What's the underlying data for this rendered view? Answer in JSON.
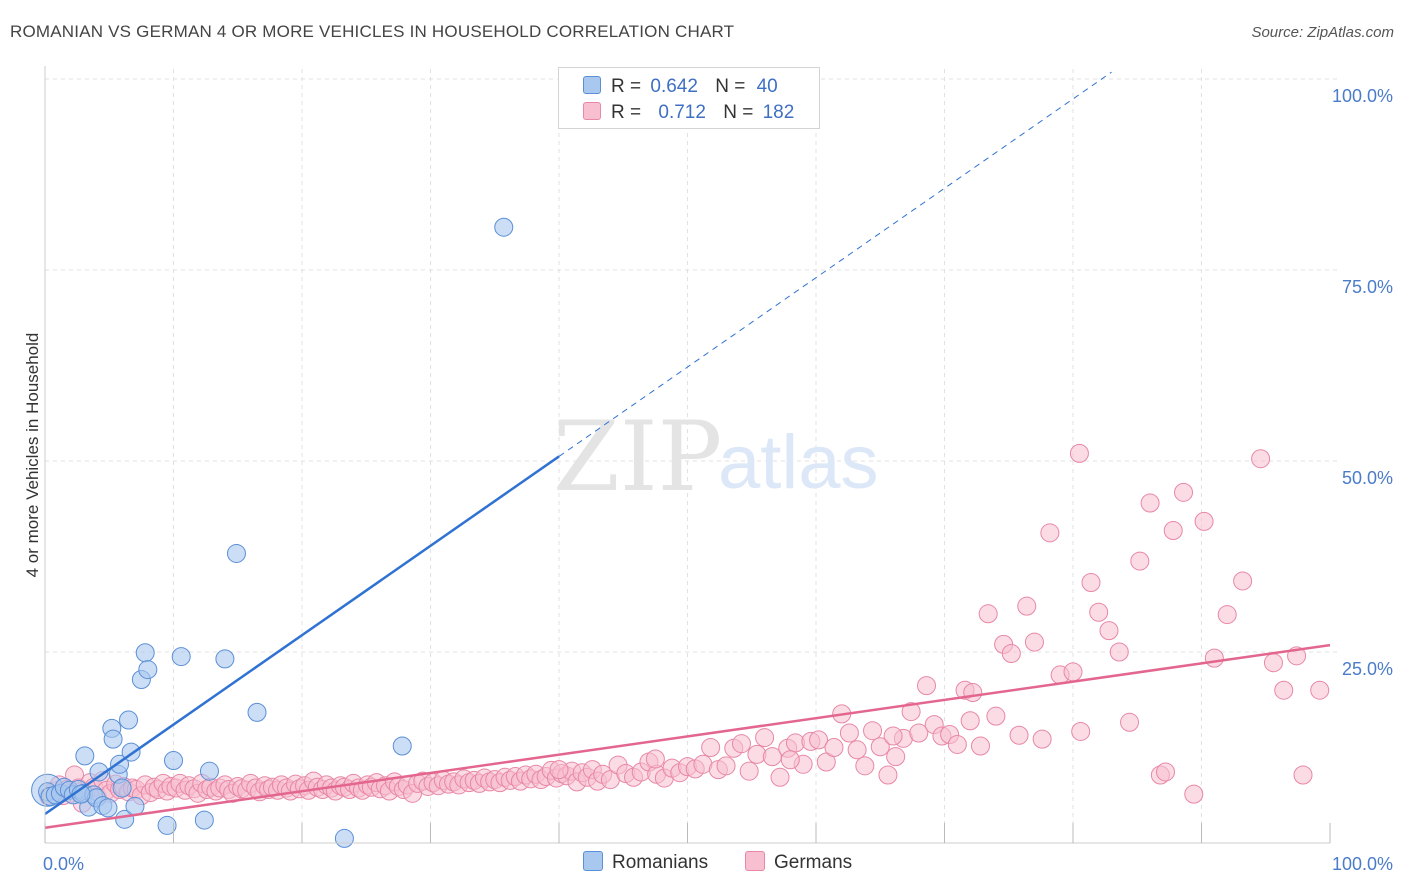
{
  "title": "ROMANIAN VS GERMAN 4 OR MORE VEHICLES IN HOUSEHOLD CORRELATION CHART",
  "source": "Source: ZipAtlas.com",
  "watermark": {
    "zip": "ZIP",
    "atlas": "atlas"
  },
  "legend": {
    "romanians": {
      "r_label": "R =",
      "r_value": "0.642",
      "n_label": "N =",
      "n_value": "40"
    },
    "germans": {
      "r_label": "R =",
      "r_value": "0.712",
      "n_label": "N =",
      "n_value": "182"
    }
  },
  "bottom_legend": {
    "romanians": "Romanians",
    "germans": "Germans"
  },
  "colors": {
    "romanians_fill": "#a9c8f0",
    "romanians_stroke": "#5b8fd6",
    "romanians_line": "#2f72d2",
    "germans_fill": "#f7bfd0",
    "germans_stroke": "#e887a8",
    "germans_line": "#e3668f",
    "tick_text": "#4a7cc9",
    "grid": "#e1e1e1"
  },
  "chart_data": {
    "type": "scatter",
    "title": "ROMANIAN VS GERMAN 4 OR MORE VEHICLES IN HOUSEHOLD CORRELATION CHART",
    "xlabel": "",
    "ylabel": "4 or more Vehicles in Household",
    "xlim": [
      0,
      100
    ],
    "ylim": [
      0,
      100
    ],
    "x_tick_labels": [
      "0.0%",
      "100.0%"
    ],
    "y_ticks": [
      25,
      50,
      75,
      100
    ],
    "y_tick_labels": [
      "25.0%",
      "50.0%",
      "75.0%",
      "100.0%"
    ],
    "grid": true,
    "legend_position": "top-center",
    "series": [
      {
        "name": "Romanians",
        "r": 0.642,
        "n": 40,
        "trend": {
          "x": [
            0,
            40
          ],
          "y": [
            3.8,
            50.6
          ],
          "dashed_to": [
            83,
            100.9
          ]
        },
        "points": [
          [
            0.2,
            6.7
          ],
          [
            0.4,
            6.1
          ],
          [
            0.8,
            6.3
          ],
          [
            1.2,
            6.5
          ],
          [
            1.5,
            7.3
          ],
          [
            1.9,
            6.9
          ],
          [
            2.2,
            6.3
          ],
          [
            2.6,
            7.0
          ],
          [
            3.0,
            6.5
          ],
          [
            3.4,
            4.7
          ],
          [
            3.1,
            11.4
          ],
          [
            3.8,
            6.3
          ],
          [
            4.0,
            5.9
          ],
          [
            4.2,
            9.3
          ],
          [
            4.5,
            4.9
          ],
          [
            4.9,
            4.6
          ],
          [
            5.2,
            15.0
          ],
          [
            5.3,
            13.6
          ],
          [
            5.7,
            9.0
          ],
          [
            5.8,
            10.3
          ],
          [
            6.0,
            7.2
          ],
          [
            6.2,
            3.1
          ],
          [
            6.5,
            16.1
          ],
          [
            6.7,
            11.9
          ],
          [
            7.0,
            4.8
          ],
          [
            7.5,
            21.4
          ],
          [
            7.8,
            24.9
          ],
          [
            8.0,
            22.7
          ],
          [
            9.5,
            2.3
          ],
          [
            10.0,
            10.8
          ],
          [
            10.6,
            24.4
          ],
          [
            12.4,
            3.0
          ],
          [
            12.8,
            9.4
          ],
          [
            14.0,
            24.1
          ],
          [
            14.9,
            37.9
          ],
          [
            16.5,
            17.1
          ],
          [
            23.3,
            0.6
          ],
          [
            27.8,
            12.7
          ],
          [
            35.7,
            80.6
          ],
          [
            2.8,
            6.4
          ]
        ]
      },
      {
        "name": "Germans",
        "r": 0.712,
        "n": 182,
        "trend": {
          "x": [
            0,
            100
          ],
          "y": [
            2.0,
            25.9
          ]
        },
        "points": [
          [
            0.3,
            6.1
          ],
          [
            0.7,
            6.8
          ],
          [
            1.1,
            7.6
          ],
          [
            1.4,
            6.2
          ],
          [
            1.7,
            7.0
          ],
          [
            2.0,
            6.5
          ],
          [
            2.3,
            8.9
          ],
          [
            2.6,
            7.2
          ],
          [
            2.9,
            5.2
          ],
          [
            3.2,
            6.6
          ],
          [
            3.5,
            7.9
          ],
          [
            3.8,
            7.3
          ],
          [
            4.1,
            6.0
          ],
          [
            4.5,
            8.2
          ],
          [
            4.8,
            6.9
          ],
          [
            5.1,
            6.5
          ],
          [
            5.5,
            7.7
          ],
          [
            5.8,
            7.0
          ],
          [
            6.1,
            7.4
          ],
          [
            6.5,
            6.7
          ],
          [
            6.8,
            7.2
          ],
          [
            7.1,
            7.0
          ],
          [
            7.5,
            6.2
          ],
          [
            7.8,
            7.6
          ],
          [
            8.2,
            6.6
          ],
          [
            8.5,
            7.3
          ],
          [
            8.8,
            7.0
          ],
          [
            9.2,
            7.8
          ],
          [
            9.5,
            6.8
          ],
          [
            9.8,
            7.4
          ],
          [
            10.2,
            7.2
          ],
          [
            10.5,
            7.8
          ],
          [
            10.9,
            6.9
          ],
          [
            11.2,
            7.5
          ],
          [
            11.6,
            7.1
          ],
          [
            11.9,
            6.5
          ],
          [
            12.2,
            7.8
          ],
          [
            12.6,
            7.0
          ],
          [
            12.9,
            7.3
          ],
          [
            13.3,
            6.8
          ],
          [
            13.6,
            7.2
          ],
          [
            14.0,
            7.6
          ],
          [
            14.3,
            7.0
          ],
          [
            14.6,
            6.5
          ],
          [
            15.0,
            7.4
          ],
          [
            15.3,
            7.1
          ],
          [
            15.7,
            6.9
          ],
          [
            16.0,
            7.8
          ],
          [
            16.4,
            7.2
          ],
          [
            16.7,
            6.7
          ],
          [
            17.1,
            7.5
          ],
          [
            17.4,
            7.0
          ],
          [
            17.7,
            7.3
          ],
          [
            18.1,
            6.9
          ],
          [
            18.4,
            7.6
          ],
          [
            18.8,
            7.2
          ],
          [
            19.1,
            6.8
          ],
          [
            19.5,
            7.7
          ],
          [
            19.8,
            7.1
          ],
          [
            20.2,
            7.5
          ],
          [
            20.5,
            6.9
          ],
          [
            20.9,
            8.1
          ],
          [
            21.2,
            7.3
          ],
          [
            21.6,
            7.0
          ],
          [
            21.9,
            7.6
          ],
          [
            22.3,
            7.2
          ],
          [
            22.6,
            6.8
          ],
          [
            23.0,
            7.5
          ],
          [
            23.3,
            7.3
          ],
          [
            23.7,
            7.0
          ],
          [
            24.0,
            7.8
          ],
          [
            24.4,
            7.2
          ],
          [
            24.7,
            6.9
          ],
          [
            25.1,
            7.6
          ],
          [
            25.4,
            7.3
          ],
          [
            25.8,
            7.9
          ],
          [
            26.1,
            7.1
          ],
          [
            26.5,
            7.5
          ],
          [
            26.8,
            6.8
          ],
          [
            27.2,
            8.0
          ],
          [
            27.5,
            7.4
          ],
          [
            27.9,
            7.0
          ],
          [
            28.2,
            7.6
          ],
          [
            28.6,
            6.5
          ],
          [
            29.0,
            7.8
          ],
          [
            29.4,
            8.1
          ],
          [
            29.8,
            7.4
          ],
          [
            30.2,
            7.9
          ],
          [
            30.6,
            7.5
          ],
          [
            31.0,
            8.2
          ],
          [
            31.4,
            7.7
          ],
          [
            31.8,
            8.0
          ],
          [
            32.2,
            7.6
          ],
          [
            32.6,
            8.4
          ],
          [
            33.0,
            7.9
          ],
          [
            33.4,
            8.2
          ],
          [
            33.8,
            7.8
          ],
          [
            34.2,
            8.5
          ],
          [
            34.6,
            8.0
          ],
          [
            35.0,
            8.3
          ],
          [
            35.4,
            7.9
          ],
          [
            35.8,
            8.6
          ],
          [
            36.2,
            8.2
          ],
          [
            36.6,
            8.7
          ],
          [
            37.0,
            8.1
          ],
          [
            37.4,
            8.9
          ],
          [
            37.8,
            8.4
          ],
          [
            38.2,
            9.0
          ],
          [
            38.6,
            8.3
          ],
          [
            39.0,
            8.7
          ],
          [
            39.4,
            9.5
          ],
          [
            39.8,
            8.5
          ],
          [
            40.2,
            9.1
          ],
          [
            40.6,
            8.8
          ],
          [
            41.0,
            9.4
          ],
          [
            41.4,
            8.0
          ],
          [
            41.8,
            9.2
          ],
          [
            42.2,
            8.6
          ],
          [
            42.6,
            9.6
          ],
          [
            43.0,
            8.1
          ],
          [
            43.4,
            9.0
          ],
          [
            44.0,
            8.3
          ],
          [
            44.6,
            10.2
          ],
          [
            45.2,
            9.1
          ],
          [
            45.8,
            8.6
          ],
          [
            46.4,
            9.3
          ],
          [
            47.0,
            10.6
          ],
          [
            47.6,
            9.0
          ],
          [
            48.2,
            8.5
          ],
          [
            48.8,
            9.8
          ],
          [
            49.4,
            9.2
          ],
          [
            50.0,
            10.0
          ],
          [
            50.6,
            9.7
          ],
          [
            51.2,
            10.3
          ],
          [
            51.8,
            12.5
          ],
          [
            52.4,
            9.6
          ],
          [
            53.0,
            10.1
          ],
          [
            53.6,
            12.4
          ],
          [
            54.2,
            13.0
          ],
          [
            54.8,
            9.4
          ],
          [
            55.4,
            11.6
          ],
          [
            56.0,
            13.8
          ],
          [
            56.6,
            11.3
          ],
          [
            57.2,
            8.6
          ],
          [
            57.8,
            12.4
          ],
          [
            58.4,
            13.1
          ],
          [
            59.0,
            10.3
          ],
          [
            59.6,
            13.3
          ],
          [
            60.2,
            13.5
          ],
          [
            60.8,
            10.6
          ],
          [
            61.4,
            12.5
          ],
          [
            62.0,
            16.9
          ],
          [
            62.6,
            14.4
          ],
          [
            63.2,
            12.2
          ],
          [
            63.8,
            10.1
          ],
          [
            64.4,
            14.7
          ],
          [
            65.0,
            12.6
          ],
          [
            65.6,
            8.9
          ],
          [
            66.2,
            11.3
          ],
          [
            66.8,
            13.7
          ],
          [
            67.4,
            17.2
          ],
          [
            68.0,
            14.4
          ],
          [
            68.6,
            20.6
          ],
          [
            69.2,
            15.5
          ],
          [
            69.8,
            14.0
          ],
          [
            70.4,
            14.2
          ],
          [
            71.0,
            12.9
          ],
          [
            71.6,
            20.0
          ],
          [
            72.2,
            19.7
          ],
          [
            72.8,
            12.7
          ],
          [
            73.4,
            30.0
          ],
          [
            74.0,
            16.6
          ],
          [
            74.6,
            26.0
          ],
          [
            75.2,
            24.8
          ],
          [
            75.8,
            14.1
          ],
          [
            76.4,
            31.0
          ],
          [
            77.0,
            26.3
          ],
          [
            77.6,
            13.6
          ],
          [
            78.2,
            40.6
          ],
          [
            79.0,
            22.0
          ],
          [
            80.0,
            22.4
          ],
          [
            80.6,
            14.6
          ],
          [
            81.4,
            34.1
          ],
          [
            82.0,
            30.2
          ],
          [
            82.8,
            27.8
          ],
          [
            83.6,
            25.0
          ],
          [
            84.4,
            15.8
          ],
          [
            85.2,
            36.9
          ],
          [
            86.0,
            44.5
          ],
          [
            86.8,
            8.9
          ]
        ],
        "extra_points": [
          [
            87.2,
            9.3
          ],
          [
            87.8,
            40.9
          ],
          [
            88.6,
            45.9
          ],
          [
            89.4,
            6.4
          ],
          [
            90.2,
            42.1
          ],
          [
            91.0,
            24.2
          ],
          [
            92.0,
            29.9
          ],
          [
            93.2,
            34.3
          ],
          [
            94.6,
            50.3
          ],
          [
            95.6,
            23.6
          ],
          [
            96.4,
            20.0
          ],
          [
            97.4,
            24.5
          ],
          [
            97.9,
            8.9
          ],
          [
            99.2,
            20.0
          ],
          [
            80.5,
            51.0
          ],
          [
            72.0,
            16.0
          ],
          [
            66.0,
            14.0
          ],
          [
            58.0,
            10.9
          ],
          [
            47.5,
            11.0
          ],
          [
            40.0,
            9.6
          ]
        ]
      }
    ]
  }
}
